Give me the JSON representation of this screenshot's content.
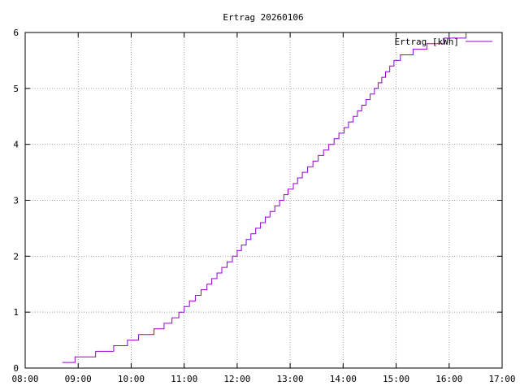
{
  "chart_data": {
    "type": "line",
    "title": "Ertrag 20260106",
    "xlabel": "",
    "ylabel": "",
    "xlim": [
      8,
      17
    ],
    "ylim": [
      0,
      6
    ],
    "x_ticks": [
      {
        "value": 8,
        "label": "08:00"
      },
      {
        "value": 9,
        "label": "09:00"
      },
      {
        "value": 10,
        "label": "10:00"
      },
      {
        "value": 11,
        "label": "11:00"
      },
      {
        "value": 12,
        "label": "12:00"
      },
      {
        "value": 13,
        "label": "13:00"
      },
      {
        "value": 14,
        "label": "14:00"
      },
      {
        "value": 15,
        "label": "15:00"
      },
      {
        "value": 16,
        "label": "16:00"
      },
      {
        "value": 17,
        "label": "17:00"
      }
    ],
    "y_ticks": [
      {
        "value": 0,
        "label": "0"
      },
      {
        "value": 1,
        "label": "1"
      },
      {
        "value": 2,
        "label": "2"
      },
      {
        "value": 3,
        "label": "3"
      },
      {
        "value": 4,
        "label": "4"
      },
      {
        "value": 5,
        "label": "5"
      },
      {
        "value": 6,
        "label": "6"
      }
    ],
    "grid": true,
    "legend_position": "top-right",
    "series": [
      {
        "name": "Ertrag [kWh]",
        "color": "#9400d3",
        "step": "post",
        "x": [
          8.7,
          8.94,
          9.33,
          9.67,
          9.93,
          10.14,
          10.43,
          10.62,
          10.77,
          10.9,
          11.0,
          11.1,
          11.21,
          11.32,
          11.43,
          11.52,
          11.62,
          11.71,
          11.81,
          11.91,
          12.0,
          12.08,
          12.17,
          12.26,
          12.35,
          12.44,
          12.53,
          12.62,
          12.71,
          12.8,
          12.88,
          12.96,
          13.06,
          13.14,
          13.23,
          13.33,
          13.43,
          13.53,
          13.63,
          13.73,
          13.83,
          13.92,
          14.02,
          14.1,
          14.19,
          14.27,
          14.35,
          14.43,
          14.51,
          14.59,
          14.66,
          14.73,
          14.8,
          14.88,
          14.96,
          15.08,
          15.32,
          15.58,
          15.91,
          16.32,
          17.0
        ],
        "y": [
          0.1,
          0.2,
          0.3,
          0.4,
          0.5,
          0.6,
          0.7,
          0.8,
          0.9,
          1.0,
          1.1,
          1.2,
          1.3,
          1.4,
          1.5,
          1.6,
          1.7,
          1.8,
          1.9,
          2.0,
          2.1,
          2.2,
          2.3,
          2.4,
          2.5,
          2.6,
          2.7,
          2.8,
          2.9,
          3.0,
          3.1,
          3.2,
          3.3,
          3.4,
          3.5,
          3.6,
          3.7,
          3.8,
          3.9,
          4.0,
          4.1,
          4.2,
          4.3,
          4.4,
          4.5,
          4.6,
          4.7,
          4.8,
          4.9,
          5.0,
          5.1,
          5.2,
          5.3,
          5.4,
          5.5,
          5.6,
          5.7,
          5.8,
          5.9,
          6.0,
          6.0
        ]
      }
    ]
  }
}
